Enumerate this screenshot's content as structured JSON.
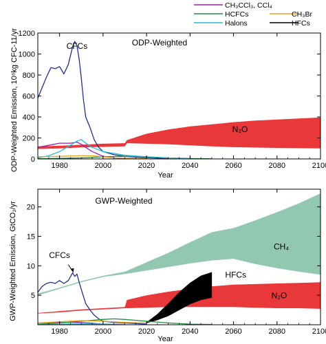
{
  "legend": [
    {
      "label": "CH₃CCl₃, CCl₄",
      "color": "#9b1fa7"
    },
    {
      "label": "HCFCs",
      "color": "#1d8f3a"
    },
    {
      "label": "Halons",
      "color": "#29b8d8"
    },
    {
      "label": "CH₃Br",
      "color": "#e8a020"
    },
    {
      "label": "HFCs",
      "color": "#000000"
    }
  ],
  "chart_data": [
    {
      "type": "line",
      "title": "ODP-Weighted",
      "xlabel": "Year",
      "ylabel": "ODP-Weighted Emission, 10⁶kg CFC-11/yr",
      "xlim": [
        1970,
        2100
      ],
      "ylim": [
        0,
        1200
      ],
      "xticks": [
        1980,
        2000,
        2020,
        2040,
        2060,
        2080,
        2100
      ],
      "yticks": [
        0,
        200,
        400,
        600,
        800,
        1000,
        1200
      ],
      "grid": false,
      "series": [
        {
          "name": "CFCs",
          "color": "#1f2f8c",
          "x": [
            1970,
            1972,
            1974,
            1976,
            1978,
            1980,
            1982,
            1984,
            1986,
            1987,
            1988,
            1989,
            1990,
            1991,
            1992,
            1994,
            1996,
            1998,
            2000,
            2005,
            2010,
            2020,
            2030
          ],
          "y": [
            580,
            680,
            780,
            870,
            860,
            880,
            810,
            900,
            1070,
            1120,
            1080,
            950,
            770,
            560,
            400,
            300,
            180,
            110,
            70,
            40,
            25,
            12,
            5
          ]
        },
        {
          "name": "CH₃CCl₃, CCl₄",
          "color": "#9b1fa7",
          "x": [
            1970,
            1975,
            1980,
            1985,
            1988,
            1990,
            1992,
            1995,
            2000,
            2005,
            2010,
            2020
          ],
          "y": [
            110,
            130,
            150,
            150,
            160,
            140,
            110,
            70,
            25,
            10,
            5,
            2
          ]
        },
        {
          "name": "HCFCs",
          "color": "#1d8f3a",
          "x": [
            1970,
            1980,
            1990,
            2000,
            2010,
            2020,
            2030,
            2040,
            2050
          ],
          "y": [
            2,
            5,
            10,
            20,
            25,
            20,
            10,
            4,
            1
          ]
        },
        {
          "name": "Halons",
          "color": "#29b8d8",
          "x": [
            1970,
            1975,
            1980,
            1985,
            1988,
            1990,
            1992,
            1995,
            2000,
            2010,
            2020,
            2030,
            2040
          ],
          "y": [
            10,
            30,
            70,
            130,
            170,
            185,
            150,
            110,
            70,
            35,
            20,
            10,
            5
          ]
        },
        {
          "name": "CH₃Br",
          "color": "#e8a020",
          "x": [
            1970,
            1980,
            1990,
            1995,
            2000,
            2005,
            2010,
            2020
          ],
          "y": [
            20,
            25,
            30,
            30,
            20,
            10,
            8,
            5
          ]
        }
      ],
      "bands": [
        {
          "name": "N₂O",
          "color": "#e8383a",
          "x": [
            1970,
            1980,
            1990,
            2000,
            2010
          ],
          "low": [
            95,
            100,
            110,
            115,
            120
          ],
          "high": [
            120,
            125,
            135,
            145,
            150
          ]
        },
        {
          "name": "N₂O",
          "color": "#e8383a",
          "x": [
            2010,
            2011,
            2020,
            2030,
            2040,
            2050,
            2060,
            2070,
            2080,
            2090,
            2100
          ],
          "low": [
            120,
            150,
            145,
            140,
            130,
            120,
            112,
            108,
            105,
            102,
            100
          ],
          "high": [
            150,
            180,
            240,
            280,
            310,
            330,
            350,
            365,
            375,
            385,
            395
          ]
        }
      ],
      "annotations": [
        {
          "text": "CFCs",
          "x": 1988,
          "y": 1050
        },
        {
          "text": "N₂O",
          "x": 2063,
          "y": 255
        }
      ]
    },
    {
      "type": "area",
      "title": "GWP-Weighted",
      "xlabel": "Year",
      "ylabel": "GWP-Weighted Emission, GtCO₂/yr",
      "xlim": [
        1970,
        2100
      ],
      "ylim": [
        0,
        23
      ],
      "xticks": [
        1980,
        2000,
        2020,
        2040,
        2060,
        2080,
        2100
      ],
      "yticks": [
        5,
        10,
        15,
        20
      ],
      "grid": false,
      "series": [
        {
          "name": "CFCs",
          "color": "#1f2f8c",
          "x": [
            1970,
            1972,
            1974,
            1976,
            1978,
            1980,
            1982,
            1984,
            1986,
            1987,
            1988,
            1989,
            1990,
            1991,
            1992,
            1994,
            1996,
            1998,
            2000,
            2005,
            2010,
            2020
          ],
          "y": [
            5.5,
            6.5,
            7.0,
            7.2,
            7.0,
            7.5,
            7.0,
            7.5,
            8.8,
            8.2,
            8.6,
            7.2,
            6.0,
            4.8,
            3.6,
            2.5,
            1.6,
            1.0,
            0.6,
            0.4,
            0.3,
            0.1
          ]
        },
        {
          "name": "CH₃CCl₃, CCl₄",
          "color": "#9b1fa7",
          "x": [
            1970,
            1980,
            1990,
            2000,
            2010
          ],
          "y": [
            0.3,
            0.4,
            0.4,
            0.1,
            0.05
          ]
        },
        {
          "name": "HCFCs",
          "color": "#1d8f3a",
          "x": [
            1970,
            1980,
            1990,
            2000,
            2005,
            2010,
            2020,
            2030,
            2040,
            2050
          ],
          "y": [
            0.1,
            0.3,
            0.6,
            0.9,
            1.0,
            0.9,
            0.6,
            0.3,
            0.1,
            0.05
          ]
        },
        {
          "name": "Halons",
          "color": "#29b8d8",
          "x": [
            1970,
            1980,
            1990,
            2000,
            2010
          ],
          "y": [
            0.05,
            0.1,
            0.15,
            0.1,
            0.05
          ]
        },
        {
          "name": "CH₃Br",
          "color": "#e8a020",
          "x": [
            1970,
            1980,
            1990,
            2000,
            2010,
            2020
          ],
          "y": [
            0.3,
            0.5,
            0.7,
            0.6,
            0.4,
            0.3
          ]
        }
      ],
      "bands": [
        {
          "name": "CH₄",
          "color": "#93c8b0",
          "x": [
            1970,
            1980,
            1990,
            2000,
            2010,
            2020,
            2030,
            2040,
            2050,
            2060,
            2070,
            2080,
            2090,
            2100
          ],
          "low": [
            5.0,
            6.1,
            7.2,
            8.1,
            8.6,
            9.2,
            9.8,
            10.4,
            10.9,
            11.2,
            10.3,
            9.6,
            9.0,
            8.5
          ],
          "high": [
            5.3,
            6.3,
            7.4,
            8.3,
            9.0,
            10.6,
            12.2,
            14.0,
            15.7,
            16.4,
            17.7,
            19.1,
            20.6,
            22.3
          ]
        },
        {
          "name": "N₂O",
          "color": "#e8383a",
          "x": [
            1970,
            1980,
            1990,
            2000,
            2010
          ],
          "low": [
            1.9,
            2.1,
            2.4,
            2.6,
            2.8
          ],
          "high": [
            2.0,
            2.3,
            2.6,
            2.8,
            3.0
          ]
        },
        {
          "name": "N₂O",
          "color": "#e8383a",
          "x": [
            2010,
            2011,
            2020,
            2030,
            2040,
            2050,
            2060,
            2070,
            2080,
            2090,
            2100
          ],
          "low": [
            2.8,
            2.8,
            2.9,
            3.0,
            3.0,
            3.0,
            3.0,
            2.9,
            2.8,
            2.8,
            2.7
          ],
          "high": [
            3.0,
            4.2,
            5.0,
            5.6,
            6.1,
            6.5,
            6.8,
            6.9,
            7.0,
            7.1,
            7.2
          ]
        },
        {
          "name": "HFCs",
          "color": "#000000",
          "x": [
            2020,
            2025,
            2030,
            2035,
            2040,
            2045,
            2050
          ],
          "low": [
            0.3,
            0.8,
            1.5,
            2.5,
            3.5,
            4.2,
            4.6
          ],
          "high": [
            0.4,
            1.8,
            3.6,
            5.5,
            7.1,
            8.3,
            8.9
          ]
        }
      ],
      "annotations": [
        {
          "text": "CFCs",
          "x": 1980,
          "y": 11.3
        },
        {
          "text": "CH₄",
          "x": 2082,
          "y": 12.8
        },
        {
          "text": "HFCs",
          "x": 2061,
          "y": 8.0
        },
        {
          "text": "N₂O",
          "x": 2081,
          "y": 4.5
        }
      ]
    }
  ]
}
